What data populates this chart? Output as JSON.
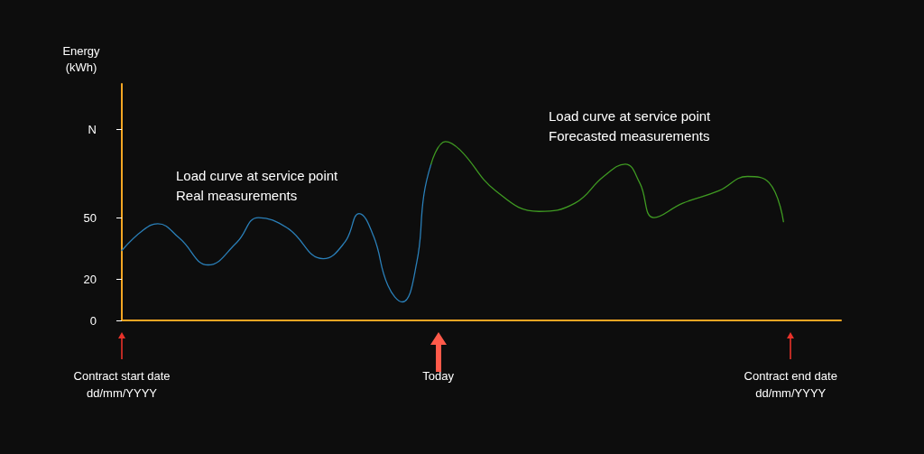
{
  "chart_data": {
    "type": "line",
    "ylabel": "Energy\n(kWh)",
    "categories": [
      "Contract start date\ndd/mm/YYYY",
      null,
      null,
      null,
      null,
      null,
      null,
      null,
      null,
      null,
      null,
      null,
      null,
      null,
      null,
      null,
      null,
      null,
      null,
      null,
      null,
      null,
      null,
      null,
      null,
      null,
      null,
      null,
      null,
      null,
      null,
      null,
      null,
      null,
      null,
      null,
      null,
      null,
      null,
      null,
      null,
      null,
      null,
      null,
      "Today",
      null,
      null,
      null,
      null,
      null,
      null,
      null,
      null,
      null,
      null,
      null,
      null,
      null,
      null,
      null,
      null,
      null,
      null,
      null,
      null,
      null,
      null,
      null,
      null,
      null,
      null,
      null,
      null,
      null,
      null,
      null,
      null,
      null,
      null,
      null,
      null,
      null,
      null,
      null,
      null,
      null,
      null,
      null,
      null,
      null,
      null,
      null,
      null,
      "Contract end date\ndd/mm/YYYY",
      null,
      null,
      null,
      null,
      null,
      null,
      null
    ],
    "ylim": [
      0,
      115
    ],
    "yticks": [
      0,
      20,
      50,
      {
        "value": 93,
        "label": "N"
      }
    ],
    "grid": false,
    "legend": false,
    "marker": "none",
    "line_style": "solid",
    "series": [
      {
        "name": "Load curve at service point\nReal measurements",
        "color": "#2a7fb8",
        "values": [
          34,
          null,
          null,
          44,
          null,
          47,
          null,
          null,
          40,
          null,
          null,
          null,
          27,
          null,
          null,
          null,
          38,
          null,
          null,
          50,
          null,
          null,
          null,
          45,
          null,
          null,
          null,
          null,
          30,
          null,
          null,
          38,
          null,
          52,
          null,
          41,
          null,
          17,
          null,
          9,
          null,
          28,
          61,
          76,
          null,
          null,
          null,
          null,
          null,
          null,
          null,
          null,
          null,
          null,
          null,
          null,
          null,
          null,
          null,
          null,
          null,
          null,
          null,
          null,
          null,
          null,
          null,
          null,
          null,
          null,
          null,
          null,
          null,
          null,
          null,
          null,
          null,
          null,
          null,
          null,
          null,
          null,
          null,
          null,
          null,
          null,
          null,
          null,
          null,
          null,
          null,
          null,
          null,
          null,
          null,
          null,
          null,
          null,
          null,
          null,
          null
        ]
      },
      {
        "name": "Load curve at service point\nForecasted measurements",
        "color": "#3f9a22",
        "values": [
          null,
          null,
          null,
          null,
          null,
          null,
          null,
          null,
          null,
          null,
          null,
          null,
          null,
          null,
          null,
          null,
          null,
          null,
          null,
          null,
          null,
          null,
          null,
          null,
          null,
          null,
          null,
          null,
          null,
          null,
          null,
          null,
          null,
          null,
          null,
          null,
          null,
          null,
          null,
          null,
          null,
          null,
          null,
          76,
          null,
          87,
          null,
          83,
          null,
          null,
          null,
          null,
          63,
          null,
          null,
          null,
          null,
          null,
          53,
          null,
          null,
          null,
          null,
          57,
          null,
          null,
          null,
          70,
          null,
          null,
          76,
          null,
          67,
          null,
          50,
          null,
          null,
          null,
          57,
          null,
          null,
          null,
          null,
          63,
          null,
          null,
          null,
          70,
          null,
          null,
          67,
          null,
          48,
          null,
          null,
          null,
          null,
          null,
          null,
          null,
          null
        ]
      }
    ]
  }
}
